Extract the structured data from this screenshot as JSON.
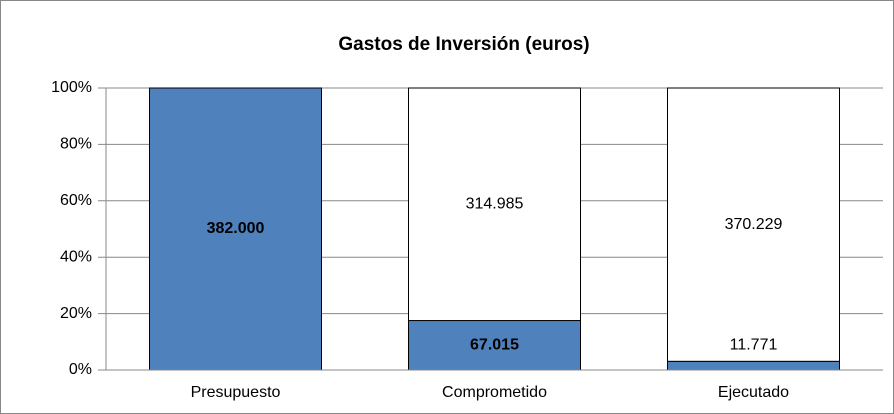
{
  "chart_data": {
    "type": "bar",
    "stacked": "percent",
    "title": "Gastos de Inversión (euros)",
    "categories": [
      "Presupuesto",
      "Comprometido",
      "Ejecutado"
    ],
    "series": [
      {
        "color": "#4f81bd",
        "values": [
          382000,
          67015,
          11771
        ],
        "value_labels": [
          "382.000",
          "67.015",
          "11.771"
        ]
      },
      {
        "color": "#ffffff",
        "values": [
          null,
          314985,
          370229
        ],
        "value_labels": [
          null,
          "314.985",
          "370.229"
        ]
      }
    ],
    "ylim": [
      0,
      100
    ],
    "yticks": [
      {
        "value": 0,
        "label": "0%"
      },
      {
        "value": 20,
        "label": "20%"
      },
      {
        "value": 40,
        "label": "40%"
      },
      {
        "value": 60,
        "label": "60%"
      },
      {
        "value": 80,
        "label": "80%"
      },
      {
        "value": 100,
        "label": "100%"
      }
    ],
    "grid": true
  }
}
